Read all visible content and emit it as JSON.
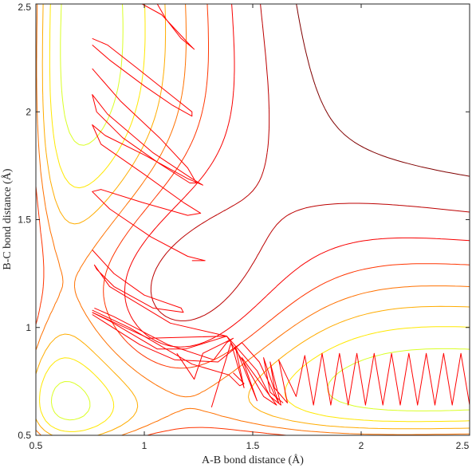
{
  "chart_data": {
    "type": "line",
    "subtype": "contour-with-trajectory",
    "title": "",
    "xlabel": "A-B bond distance (Å)",
    "ylabel": "B-C bond distance (Å)",
    "xlim": [
      0.5,
      2.5
    ],
    "ylim": [
      0.5,
      2.5
    ],
    "x_ticks": [
      0.5,
      1,
      1.5,
      2,
      2.5
    ],
    "x_tick_labels": [
      "0.5",
      "1",
      "1.5",
      "2",
      "2.5"
    ],
    "y_ticks": [
      0.5,
      1,
      1.5,
      2,
      2.5
    ],
    "y_tick_labels": [
      "0.5",
      "1",
      "1.5",
      "2",
      "2.5"
    ],
    "grid": false,
    "legend": "none",
    "colormap": "jet",
    "contour_levels": 18,
    "series": [
      {
        "color": "#ff0000",
        "points": [
          [
            0.76,
            1.07
          ],
          [
            0.84,
            1.03
          ],
          [
            1.06,
            0.9
          ],
          [
            1.19,
            0.9
          ],
          [
            1.38,
            0.96
          ],
          [
            1.52,
            0.8
          ],
          [
            1.58,
            0.68
          ],
          [
            1.63,
            0.64
          ],
          [
            1.58,
            0.84
          ],
          [
            1.6,
            0.72
          ],
          [
            1.66,
            0.65
          ],
          [
            1.62,
            0.85
          ],
          [
            1.7,
            0.68
          ],
          [
            1.74,
            0.87
          ],
          [
            1.78,
            0.64
          ],
          [
            1.82,
            0.88
          ],
          [
            1.86,
            0.64
          ],
          [
            1.9,
            0.88
          ],
          [
            1.94,
            0.64
          ],
          [
            1.98,
            0.88
          ],
          [
            2.02,
            0.64
          ],
          [
            2.06,
            0.88
          ],
          [
            2.1,
            0.64
          ],
          [
            2.14,
            0.88
          ],
          [
            2.18,
            0.64
          ],
          [
            2.22,
            0.88
          ],
          [
            2.26,
            0.64
          ],
          [
            2.3,
            0.88
          ],
          [
            2.34,
            0.64
          ],
          [
            2.38,
            0.88
          ],
          [
            2.42,
            0.64
          ],
          [
            2.46,
            0.88
          ],
          [
            2.5,
            0.64
          ]
        ]
      },
      {
        "color": "#ff0000",
        "points": [
          [
            0.76,
            1.07
          ],
          [
            1.02,
            0.95
          ],
          [
            1.38,
            0.96
          ],
          [
            1.47,
            0.82
          ],
          [
            1.55,
            0.68
          ],
          [
            1.61,
            0.64
          ],
          [
            1.45,
            0.86
          ],
          [
            1.52,
            0.66
          ],
          [
            1.42,
            0.91
          ],
          [
            1.46,
            0.72
          ],
          [
            1.4,
            0.93
          ],
          [
            1.31,
            0.63
          ]
        ]
      },
      {
        "color": "#ff0000",
        "points": [
          [
            0.77,
            1.09
          ],
          [
            0.86,
            1.05
          ],
          [
            1.11,
            0.92
          ],
          [
            1.32,
            0.85
          ],
          [
            1.38,
            0.93
          ],
          [
            1.41,
            0.95
          ],
          [
            1.27,
            0.88
          ],
          [
            1.23,
            0.76
          ],
          [
            1.15,
            0.88
          ]
        ]
      },
      {
        "color": "#ff0000",
        "points": [
          [
            0.76,
            1.06
          ],
          [
            0.98,
            0.92
          ],
          [
            1.14,
            0.85
          ],
          [
            1.34,
            0.84
          ],
          [
            1.45,
            0.93
          ],
          [
            1.53,
            0.84
          ],
          [
            1.6,
            0.69
          ],
          [
            1.62,
            0.65
          ],
          [
            1.55,
            0.86
          ],
          [
            1.58,
            0.7
          ],
          [
            1.64,
            0.65
          ]
        ]
      },
      {
        "color": "#ff0000",
        "points": [
          [
            0.76,
            1.08
          ],
          [
            0.93,
            1.0
          ],
          [
            1.22,
            0.83
          ],
          [
            1.39,
            0.78
          ],
          [
            1.44,
            0.73
          ],
          [
            1.46,
            0.74
          ],
          [
            1.41,
            0.79
          ]
        ]
      },
      {
        "color": "#ff0000",
        "points": [
          [
            0.76,
            1.36
          ],
          [
            0.86,
            1.25
          ],
          [
            1.0,
            1.15
          ],
          [
            1.17,
            1.09
          ],
          [
            1.18,
            1.07
          ],
          [
            1.04,
            1.09
          ],
          [
            0.86,
            1.19
          ],
          [
            0.78,
            1.27
          ],
          [
            0.77,
            1.29
          ],
          [
            0.84,
            1.19
          ],
          [
            1.12,
            1.02
          ],
          [
            1.38,
            0.96
          ]
        ]
      },
      {
        "color": "#ff0000",
        "points": [
          [
            0.76,
            2.2
          ],
          [
            0.89,
            2.05
          ],
          [
            1.07,
            1.88
          ],
          [
            1.2,
            1.74
          ],
          [
            1.24,
            1.67
          ],
          [
            1.21,
            1.67
          ],
          [
            1.07,
            1.76
          ],
          [
            0.9,
            1.88
          ],
          [
            0.78,
            2.0
          ],
          [
            0.76,
            2.08
          ],
          [
            0.83,
            1.99
          ],
          [
            1.04,
            1.81
          ],
          [
            1.22,
            1.69
          ],
          [
            1.27,
            1.66
          ],
          [
            1.2,
            1.69
          ],
          [
            1.0,
            1.8
          ],
          [
            0.82,
            1.89
          ],
          [
            0.76,
            1.94
          ],
          [
            0.8,
            1.85
          ],
          [
            1.0,
            1.71
          ],
          [
            1.18,
            1.58
          ],
          [
            1.26,
            1.53
          ],
          [
            1.2,
            1.52
          ],
          [
            0.99,
            1.58
          ],
          [
            0.8,
            1.64
          ],
          [
            0.76,
            1.63
          ],
          [
            0.84,
            1.55
          ],
          [
            1.03,
            1.42
          ],
          [
            1.2,
            1.33
          ],
          [
            1.28,
            1.31
          ],
          [
            1.22,
            1.31
          ]
        ]
      },
      {
        "color": "#ff0000",
        "points": [
          [
            1.06,
            2.5
          ],
          [
            1.1,
            2.43
          ],
          [
            1.17,
            2.34
          ],
          [
            1.23,
            2.29
          ],
          [
            1.21,
            2.31
          ],
          [
            1.08,
            2.45
          ],
          [
            0.99,
            2.5
          ]
        ]
      },
      {
        "color": "#ff0000",
        "points": [
          [
            0.76,
            2.31
          ],
          [
            0.84,
            2.24
          ],
          [
            1.0,
            2.12
          ],
          [
            1.13,
            2.03
          ],
          [
            1.22,
            1.98
          ],
          [
            1.22,
            2.0
          ],
          [
            1.12,
            2.08
          ],
          [
            0.97,
            2.2
          ],
          [
            0.83,
            2.31
          ],
          [
            0.76,
            2.34
          ]
        ]
      }
    ]
  }
}
